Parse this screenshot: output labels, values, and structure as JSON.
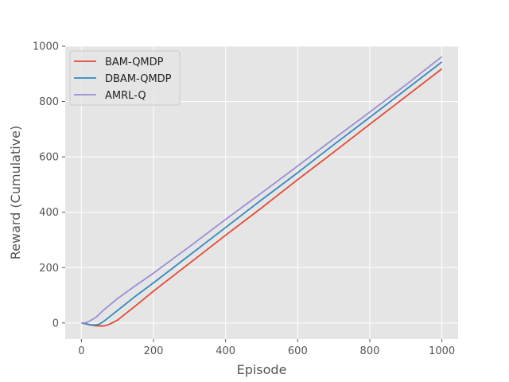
{
  "chart_data": {
    "type": "line",
    "title": "",
    "xlabel": "Episode",
    "ylabel": "Reward (Cumulative)",
    "xlim": [
      -45,
      1045
    ],
    "ylim": [
      -58,
      1000
    ],
    "xticks": [
      0,
      200,
      400,
      600,
      800,
      1000
    ],
    "yticks": [
      0,
      200,
      400,
      600,
      800,
      1000
    ],
    "grid": true,
    "legend_position": "upper-left",
    "background_color": "#e5e5e5",
    "grid_color": "#ffffff",
    "series": [
      {
        "name": "BAM-QMDP",
        "color": "#e24a33",
        "x": [
          0,
          20,
          40,
          55,
          65,
          75,
          85,
          100,
          150,
          200,
          300,
          400,
          500,
          600,
          700,
          800,
          900,
          1000
        ],
        "y": [
          0,
          -6,
          -10,
          -11,
          -10,
          -6,
          0,
          10,
          62,
          115,
          216,
          317,
          416,
          518,
          617,
          718,
          818,
          918
        ]
      },
      {
        "name": "DBAM-QMDP",
        "color": "#348abd",
        "x": [
          0,
          10,
          20,
          30,
          40,
          50,
          60,
          100,
          150,
          200,
          300,
          400,
          500,
          600,
          700,
          800,
          900,
          1000
        ],
        "y": [
          0,
          -2,
          -5,
          -7,
          -7,
          -4,
          4,
          45,
          97,
          145,
          245,
          345,
          445,
          543,
          644,
          743,
          843,
          943
        ]
      },
      {
        "name": "AMRL-Q",
        "color": "#988ed5",
        "x": [
          0,
          10,
          20,
          40,
          60,
          100,
          150,
          200,
          300,
          400,
          500,
          600,
          700,
          800,
          900,
          1000
        ],
        "y": [
          0,
          0,
          5,
          20,
          45,
          88,
          135,
          180,
          276,
          374,
          470,
          567,
          665,
          762,
          860,
          962
        ]
      }
    ]
  }
}
